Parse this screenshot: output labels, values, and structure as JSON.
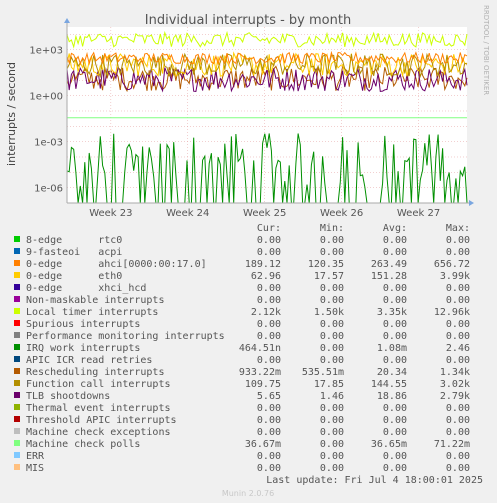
{
  "chart_data": {
    "type": "line",
    "title": "Individual interrupts - by month",
    "ylabel": "interrupts / second",
    "xlabel": "",
    "y_scale": "log",
    "ylim": [
      1e-07,
      30000.0
    ],
    "y_ticks": [
      {
        "value": 1000,
        "label": "1e+03"
      },
      {
        "value": 1,
        "label": "1e+00"
      },
      {
        "value": 0.001,
        "label": "1e-03"
      },
      {
        "value": 1e-06,
        "label": "1e-06"
      }
    ],
    "x_ticks": [
      "Week 23",
      "Week 24",
      "Week 25",
      "Week 26",
      "Week 27"
    ],
    "grid": true,
    "watermark": "RRDTOOL / TOBI OETIKER",
    "footer": "Munin 2.0.76",
    "last_update": "Last update: Fri Jul  4 18:00:01 2025",
    "columns": {
      "cur": "Cur:",
      "min": "Min:",
      "avg": "Avg:",
      "max": "Max:"
    },
    "series": [
      {
        "name": "8-edge      rtc0",
        "color": "#00cc00",
        "cur": "0.00",
        "min": "0.00",
        "avg": "0.00",
        "max": "0.00"
      },
      {
        "name": "9-fasteoi   acpi",
        "color": "#0066b3",
        "cur": "0.00",
        "min": "0.00",
        "avg": "0.00",
        "max": "0.00"
      },
      {
        "name": "0-edge      ahci[0000:00:17.0]",
        "color": "#ff8000",
        "cur": "189.12",
        "min": "120.35",
        "avg": "263.49",
        "max": "656.72"
      },
      {
        "name": "0-edge      eth0",
        "color": "#ffcc00",
        "cur": "62.96",
        "min": "17.57",
        "avg": "151.28",
        "max": "3.99k"
      },
      {
        "name": "0-edge      xhci_hcd",
        "color": "#330099",
        "cur": "0.00",
        "min": "0.00",
        "avg": "0.00",
        "max": "0.00"
      },
      {
        "name": "Non-maskable interrupts",
        "color": "#990099",
        "cur": "0.00",
        "min": "0.00",
        "avg": "0.00",
        "max": "0.00"
      },
      {
        "name": "Local timer interrupts",
        "color": "#ccff00",
        "cur": "2.12k",
        "min": "1.50k",
        "avg": "3.35k",
        "max": "12.96k"
      },
      {
        "name": "Spurious interrupts",
        "color": "#ff0000",
        "cur": "0.00",
        "min": "0.00",
        "avg": "0.00",
        "max": "0.00"
      },
      {
        "name": "Performance monitoring interrupts",
        "color": "#808080",
        "cur": "0.00",
        "min": "0.00",
        "avg": "0.00",
        "max": "0.00"
      },
      {
        "name": "IRQ work interrupts",
        "color": "#008f00",
        "cur": "464.51n",
        "min": "0.00",
        "avg": "1.08m",
        "max": "2.46"
      },
      {
        "name": "APIC ICR read retries",
        "color": "#00487d",
        "cur": "0.00",
        "min": "0.00",
        "avg": "0.00",
        "max": "0.00"
      },
      {
        "name": "Rescheduling interrupts",
        "color": "#b35a00",
        "cur": "933.22m",
        "min": "535.51m",
        "avg": "20.34",
        "max": "1.34k"
      },
      {
        "name": "Function call interrupts",
        "color": "#b38f00",
        "cur": "109.75",
        "min": "17.85",
        "avg": "144.55",
        "max": "3.02k"
      },
      {
        "name": "TLB shootdowns",
        "color": "#6b006b",
        "cur": "5.65",
        "min": "1.46",
        "avg": "18.86",
        "max": "2.79k"
      },
      {
        "name": "Thermal event interrupts",
        "color": "#8fb300",
        "cur": "0.00",
        "min": "0.00",
        "avg": "0.00",
        "max": "0.00"
      },
      {
        "name": "Threshold APIC interrupts",
        "color": "#b30000",
        "cur": "0.00",
        "min": "0.00",
        "avg": "0.00",
        "max": "0.00"
      },
      {
        "name": "Machine check exceptions",
        "color": "#bebebe",
        "cur": "0.00",
        "min": "0.00",
        "avg": "0.00",
        "max": "0.00"
      },
      {
        "name": "Machine check polls",
        "color": "#80ff80",
        "cur": "36.67m",
        "min": "0.00",
        "avg": "36.65m",
        "max": "71.22m"
      },
      {
        "name": "ERR",
        "color": "#80c9ff",
        "cur": "0.00",
        "min": "0.00",
        "avg": "0.00",
        "max": "0.00"
      },
      {
        "name": "MIS",
        "color": "#ffc080",
        "cur": "0.00",
        "min": "0.00",
        "avg": "0.00",
        "max": "0.00"
      }
    ]
  }
}
